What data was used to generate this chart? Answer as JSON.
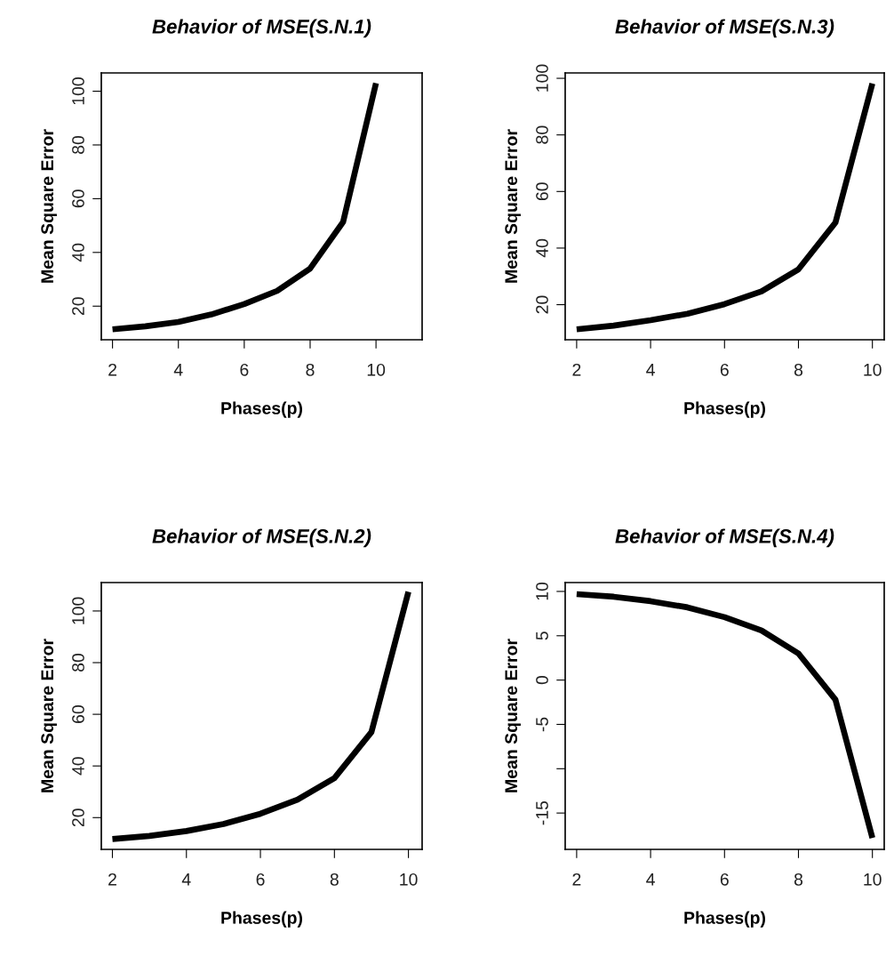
{
  "chart_data": [
    {
      "type": "line",
      "title": "Behavior of MSE(S.N.1)",
      "xlabel": "Phases(p)",
      "ylabel": "Mean Square Error",
      "x": [
        2,
        3,
        4,
        5,
        6,
        7,
        8,
        9,
        10
      ],
      "series": [
        {
          "color": "#000000",
          "values": [
            11.4,
            12.5,
            14.1,
            16.9,
            20.8,
            25.7,
            34,
            51.3,
            103
          ]
        }
      ],
      "xlim": [
        1.66,
        11.4
      ],
      "ylim": [
        7.5,
        106.8
      ],
      "xticks": [
        2,
        4,
        6,
        8,
        10
      ],
      "yticks": [
        20,
        40,
        60,
        80,
        100
      ],
      "grid": false,
      "legend": false,
      "marker": "none",
      "line_style": "solid"
    },
    {
      "type": "line",
      "title": "Behavior of MSE(S.N.3)",
      "xlabel": "Phases(p)",
      "ylabel": "Mean Square Error",
      "x": [
        2,
        3,
        4,
        5,
        6,
        7,
        8,
        9,
        10
      ],
      "series": [
        {
          "color": "#000000",
          "values": [
            11.3,
            12.6,
            14.5,
            16.8,
            20.2,
            24.7,
            32.5,
            49,
            98.2
          ]
        }
      ],
      "xlim": [
        1.69,
        10.32
      ],
      "ylim": [
        7.6,
        101.9
      ],
      "xticks": [
        2,
        4,
        6,
        8,
        10
      ],
      "yticks": [
        20,
        40,
        60,
        80,
        100
      ],
      "grid": false,
      "legend": false,
      "marker": "none",
      "line_style": "solid"
    },
    {
      "type": "line",
      "title": "Behavior of MSE(S.N.2)",
      "xlabel": "Phases(p)",
      "ylabel": "Mean Square Error",
      "x": [
        2,
        3,
        4,
        5,
        6,
        7,
        8,
        9,
        10
      ],
      "series": [
        {
          "color": "#000000",
          "values": [
            11.7,
            12.9,
            14.8,
            17.5,
            21.5,
            26.9,
            35.3,
            53.1,
            107.4
          ]
        }
      ],
      "xlim": [
        1.7,
        10.37
      ],
      "ylim": [
        7.7,
        111
      ],
      "xticks": [
        2,
        4,
        6,
        8,
        10
      ],
      "yticks": [
        20,
        40,
        60,
        80,
        100
      ],
      "grid": false,
      "legend": false,
      "marker": "none",
      "line_style": "solid"
    },
    {
      "type": "line",
      "title": "Behavior of MSE(S.N.4)",
      "xlabel": "Phases(p)",
      "ylabel": "Mean Square Error",
      "x": [
        2,
        3,
        4,
        5,
        6,
        7,
        8,
        9,
        10
      ],
      "series": [
        {
          "color": "#000000",
          "values": [
            9.7,
            9.4,
            8.9,
            8.2,
            7.1,
            5.6,
            3.0,
            -2.2,
            -17.8
          ]
        }
      ],
      "xlim": [
        1.69,
        10.32
      ],
      "ylim": [
        -19.1,
        11.0
      ],
      "xticks": [
        2,
        4,
        6,
        8,
        10
      ],
      "yticks": [
        10,
        5,
        0,
        -5,
        {
          "value": -10,
          "label": null
        },
        -15
      ],
      "grid": false,
      "legend": false,
      "marker": "none",
      "line_style": "solid"
    }
  ]
}
